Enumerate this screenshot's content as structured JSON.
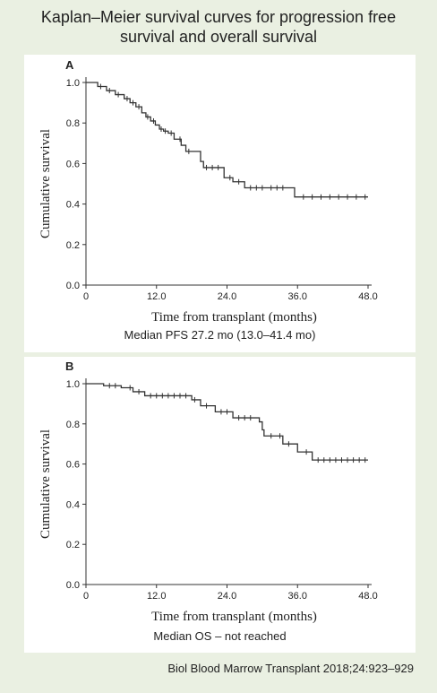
{
  "title_line1": "Kaplan–Meier survival curves for progression free",
  "title_line2": "survival and overall survival",
  "source": "Biol Blood Marrow Transplant 2018;24:923–929",
  "colors": {
    "background": "#eaf0e2",
    "panel": "#ffffff",
    "line": "#333333"
  },
  "chart_data": [
    {
      "type": "line",
      "panel_label": "A",
      "xlabel": "Time from transplant (months)",
      "ylabel": "Cumulative survival",
      "caption": "Median PFS 27.2 mo (13.0–41.4 mo)",
      "xlim": [
        0,
        48
      ],
      "ylim": [
        0,
        1.0
      ],
      "x_ticks": [
        "0",
        "12.0",
        "24.0",
        "36.0",
        "48.0"
      ],
      "y_ticks": [
        "0.0",
        "0.2",
        "0.4",
        "0.6",
        "0.8",
        "1.0"
      ],
      "step_x": [
        0,
        2.0,
        3.5,
        5.0,
        6.5,
        7.5,
        8.5,
        9.5,
        10.2,
        11.0,
        11.8,
        12.5,
        13.2,
        14.0,
        15.0,
        16.2,
        17.0,
        19.5,
        20.0,
        23.5,
        25.0,
        27.0,
        35.5,
        48.0
      ],
      "step_y": [
        1.0,
        0.98,
        0.96,
        0.94,
        0.92,
        0.9,
        0.88,
        0.85,
        0.83,
        0.81,
        0.79,
        0.77,
        0.76,
        0.75,
        0.72,
        0.69,
        0.66,
        0.61,
        0.58,
        0.53,
        0.51,
        0.48,
        0.435,
        0.435
      ],
      "censored_x": [
        2.5,
        4.0,
        5.5,
        7.0,
        8.0,
        9.0,
        10.5,
        11.5,
        12.8,
        13.5,
        14.5,
        16.0,
        17.5,
        20.5,
        21.5,
        22.5,
        24.5,
        26.0,
        28.0,
        29.0,
        30.0,
        31.5,
        32.5,
        33.5,
        37.0,
        38.5,
        40.0,
        41.5,
        43.0,
        44.5,
        46.0,
        47.5
      ]
    },
    {
      "type": "line",
      "panel_label": "B",
      "xlabel": "Time from transplant (months)",
      "ylabel": "Cumulative survival",
      "caption": "Median OS – not reached",
      "xlim": [
        0,
        48
      ],
      "ylim": [
        0,
        1.0
      ],
      "x_ticks": [
        "0",
        "12.0",
        "24.0",
        "36.0",
        "48.0"
      ],
      "y_ticks": [
        "0.0",
        "0.2",
        "0.4",
        "0.6",
        "0.8",
        "1.0"
      ],
      "step_x": [
        0,
        3.0,
        6.0,
        8.0,
        10.0,
        18.0,
        19.5,
        22.0,
        25.0,
        29.5,
        30.0,
        30.3,
        33.5,
        36.0,
        38.5,
        48.0
      ],
      "step_y": [
        1.0,
        0.99,
        0.98,
        0.96,
        0.94,
        0.92,
        0.89,
        0.86,
        0.83,
        0.81,
        0.77,
        0.74,
        0.7,
        0.66,
        0.62,
        0.62
      ],
      "censored_x": [
        4.0,
        5.0,
        7.5,
        9.0,
        11.0,
        12.0,
        13.0,
        14.0,
        15.0,
        16.0,
        17.0,
        18.5,
        20.5,
        23.0,
        24.0,
        26.0,
        27.0,
        28.0,
        31.5,
        33.0,
        34.5,
        37.5,
        39.5,
        40.5,
        41.5,
        42.5,
        43.5,
        44.5,
        45.5,
        46.5,
        47.5
      ]
    }
  ]
}
